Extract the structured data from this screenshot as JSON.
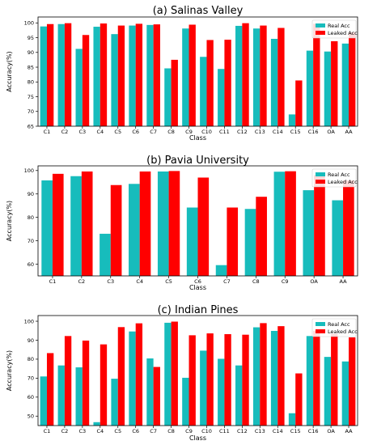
{
  "colors": {
    "real": "#17bcbc",
    "leaked": "#ff0000"
  },
  "chart_data": [
    {
      "type": "bar",
      "title": "(a) Salinas Valley",
      "xlabel": "Class",
      "ylabel": "Accuracy(%)",
      "ylim": [
        65,
        102
      ],
      "yticks": [
        65,
        70,
        75,
        80,
        85,
        90,
        95,
        100
      ],
      "legend": "top-right",
      "categories": [
        "C1",
        "C2",
        "C3",
        "C4",
        "C5",
        "C6",
        "C7",
        "C8",
        "C9",
        "C10",
        "C11",
        "C12",
        "C13",
        "C14",
        "C15",
        "C16",
        "OA",
        "AA"
      ],
      "series": [
        {
          "name": "Real Acc",
          "values": [
            98.8,
            99.6,
            91.2,
            98.7,
            96.2,
            99.1,
            99.3,
            84.6,
            98.1,
            88.5,
            84.4,
            99.0,
            98.1,
            94.6,
            69.0,
            90.6,
            90.3,
            93.0
          ]
        },
        {
          "name": "Leaked Acc",
          "values": [
            99.6,
            99.9,
            95.9,
            99.8,
            99.1,
            99.7,
            99.5,
            87.5,
            99.4,
            94.2,
            94.3,
            99.9,
            99.1,
            98.3,
            80.5,
            99.7,
            93.8,
            96.8
          ]
        }
      ]
    },
    {
      "type": "bar",
      "title": "(b) Pavia University",
      "xlabel": "Class",
      "ylabel": "Accuracy(%)",
      "ylim": [
        55,
        102
      ],
      "yticks": [
        60,
        70,
        80,
        90,
        100
      ],
      "legend": "top-right",
      "categories": [
        "C1",
        "C2",
        "C3",
        "C4",
        "C5",
        "C6",
        "C7",
        "C8",
        "C9",
        "OA",
        "AA"
      ],
      "series": [
        {
          "name": "Real Acc",
          "values": [
            95.8,
            97.6,
            73.0,
            94.3,
            99.6,
            84.2,
            59.6,
            83.6,
            99.5,
            91.6,
            87.3
          ]
        },
        {
          "name": "Leaked Acc",
          "values": [
            98.6,
            99.6,
            93.8,
            99.6,
            99.8,
            97.0,
            84.2,
            88.8,
            99.7,
            98.0,
            95.8
          ]
        }
      ]
    },
    {
      "type": "bar",
      "title": "(c) Indian Pines",
      "xlabel": "Class",
      "ylabel": "Accuracy(%)",
      "ylim": [
        45,
        103
      ],
      "yticks": [
        50,
        60,
        70,
        80,
        90,
        100
      ],
      "legend": "top-right",
      "categories": [
        "C1",
        "C2",
        "C3",
        "C4",
        "C5",
        "C6",
        "C7",
        "C8",
        "C9",
        "C10",
        "C11",
        "C12",
        "C13",
        "C14",
        "C15",
        "C16",
        "OA",
        "AA"
      ],
      "series": [
        {
          "name": "Real Acc",
          "values": [
            70.9,
            76.7,
            75.7,
            46.8,
            69.7,
            94.6,
            80.4,
            99.2,
            70.2,
            84.5,
            80.2,
            76.7,
            96.8,
            94.9,
            51.5,
            92.2,
            81.2,
            78.8
          ]
        },
        {
          "name": "Leaked Acc",
          "values": [
            83.2,
            92.2,
            89.8,
            87.8,
            96.9,
            98.9,
            75.9,
            99.8,
            92.6,
            93.6,
            93.2,
            92.9,
            99.0,
            97.4,
            72.5,
            94.9,
            93.3,
            91.5
          ]
        }
      ]
    }
  ]
}
